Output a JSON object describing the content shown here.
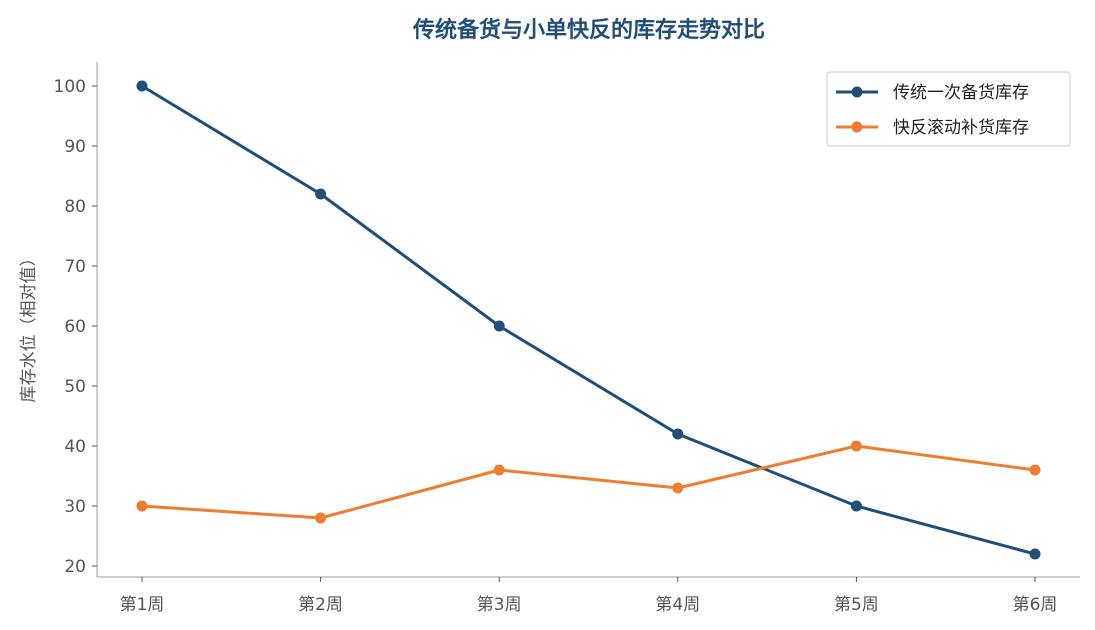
{
  "chart_data": {
    "type": "line",
    "title": "传统备货与小单快反的库存走势对比",
    "xlabel": "",
    "ylabel": "库存水位（相对值）",
    "categories": [
      "第1周",
      "第2周",
      "第3周",
      "第4周",
      "第5周",
      "第6周"
    ],
    "ylim": [
      20,
      100
    ],
    "yticks": [
      20,
      30,
      40,
      50,
      60,
      70,
      80,
      90,
      100
    ],
    "grid": false,
    "legend_position": "top-right",
    "series": [
      {
        "name": "传统一次备货库存",
        "color": "#1f4e79",
        "values": [
          100,
          82,
          60,
          42,
          30,
          22
        ]
      },
      {
        "name": "快反滚动补货库存",
        "color": "#ed7d31",
        "values": [
          30,
          28,
          36,
          33,
          40,
          36
        ]
      }
    ]
  }
}
